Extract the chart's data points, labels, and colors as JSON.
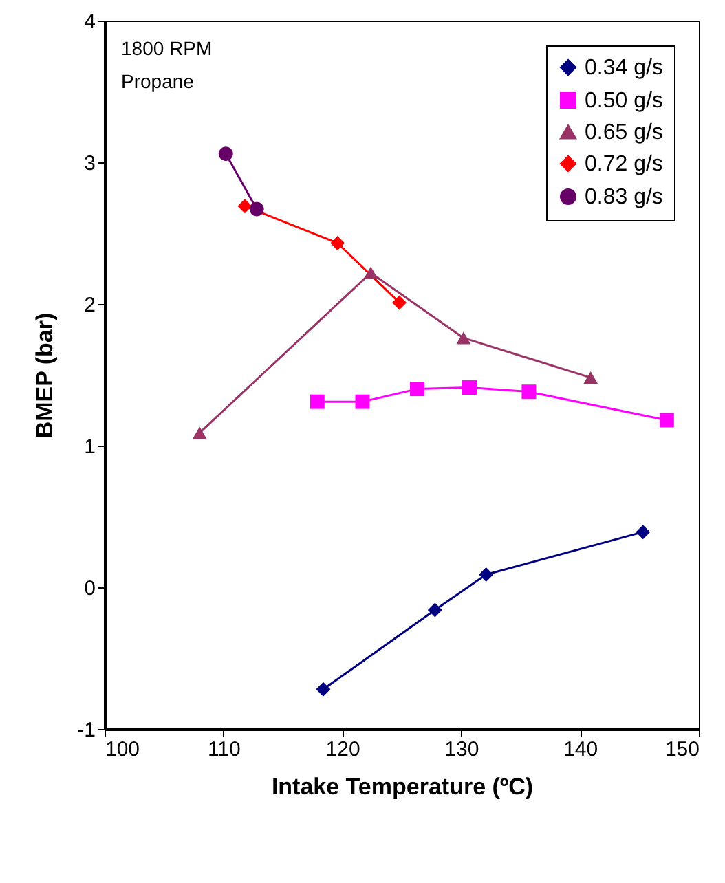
{
  "chart_data": {
    "type": "line",
    "xlabel": "Intake Temperature (ºC)",
    "ylabel": "BMEP (bar)",
    "annotations": [
      "1800 RPM",
      "Propane"
    ],
    "xlim": [
      100,
      150
    ],
    "xticks": [
      100,
      110,
      120,
      130,
      140,
      150
    ],
    "ylim": [
      -1,
      4
    ],
    "yticks": [
      -1,
      0,
      1,
      2,
      3,
      4
    ],
    "grid": false,
    "legend": "top right",
    "series": [
      {
        "name": "0.34 g/s",
        "color": "#000080",
        "marker": "diamond",
        "x": [
          118.4,
          127.8,
          132.1,
          145.3
        ],
        "values": [
          -0.72,
          -0.16,
          0.09,
          0.39
        ]
      },
      {
        "name": "0.50 g/s",
        "color": "#ff00ff",
        "marker": "square",
        "x": [
          117.9,
          121.7,
          126.3,
          130.7,
          135.7,
          147.3
        ],
        "values": [
          1.31,
          1.31,
          1.4,
          1.41,
          1.38,
          1.18
        ]
      },
      {
        "name": "0.65 g/s",
        "color": "#993366",
        "marker": "triangle",
        "x": [
          108.0,
          122.4,
          130.2,
          140.9
        ],
        "values": [
          1.09,
          2.22,
          1.76,
          1.48
        ]
      },
      {
        "name": "0.72 g/s",
        "color": "#ff0000",
        "marker": "diamond",
        "x": [
          111.8,
          119.6,
          124.8
        ],
        "values": [
          2.69,
          2.43,
          2.01
        ]
      },
      {
        "name": "0.83 g/s",
        "color": "#660066",
        "marker": "circle",
        "x": [
          110.2,
          112.8
        ],
        "values": [
          3.06,
          2.67
        ]
      }
    ]
  }
}
